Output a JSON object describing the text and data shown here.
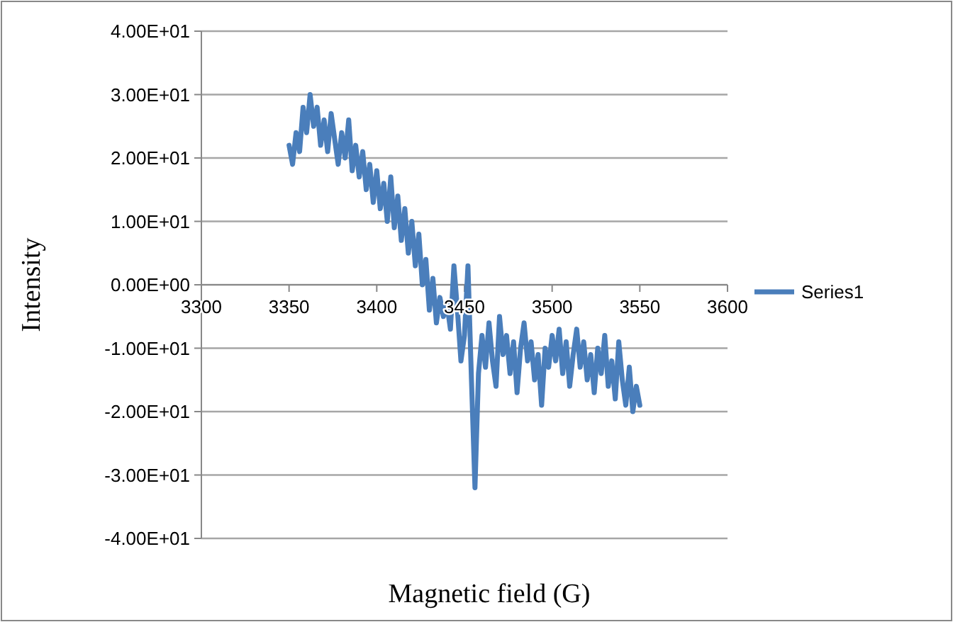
{
  "chart_data": {
    "type": "line",
    "xlabel": "Magnetic field (G)",
    "ylabel": "Intensity",
    "x": [
      3350,
      3352,
      3354,
      3356,
      3358,
      3360,
      3362,
      3364,
      3366,
      3368,
      3370,
      3372,
      3374,
      3376,
      3378,
      3380,
      3382,
      3384,
      3386,
      3388,
      3390,
      3392,
      3394,
      3396,
      3398,
      3400,
      3402,
      3404,
      3406,
      3408,
      3410,
      3412,
      3414,
      3416,
      3418,
      3420,
      3422,
      3424,
      3426,
      3428,
      3430,
      3432,
      3434,
      3436,
      3438,
      3440,
      3442,
      3444,
      3446,
      3448,
      3450,
      3452,
      3454,
      3456,
      3458,
      3460,
      3462,
      3464,
      3466,
      3468,
      3470,
      3472,
      3474,
      3476,
      3478,
      3480,
      3482,
      3484,
      3486,
      3488,
      3490,
      3492,
      3494,
      3496,
      3498,
      3500,
      3502,
      3504,
      3506,
      3508,
      3510,
      3512,
      3514,
      3516,
      3518,
      3520,
      3522,
      3524,
      3526,
      3528,
      3530,
      3532,
      3534,
      3536,
      3538,
      3540,
      3542,
      3544,
      3546,
      3548,
      3550
    ],
    "series": [
      {
        "name": "Series1",
        "color": "#4a7ebb",
        "values": [
          22,
          19,
          24,
          21,
          28,
          24,
          30,
          25,
          28,
          22,
          26,
          21,
          27,
          23,
          19,
          24,
          20,
          26,
          18,
          22,
          17,
          21,
          15,
          19,
          13,
          18,
          12,
          16,
          10,
          17,
          9,
          14,
          7,
          12,
          5,
          10,
          3,
          8,
          0,
          4,
          -4,
          1,
          -6,
          -2,
          -5,
          -3,
          -7,
          3,
          -4,
          -12,
          -8,
          3,
          -15,
          -32,
          -14,
          -8,
          -13,
          -6,
          -12,
          -16,
          -5,
          -11,
          -8,
          -14,
          -9,
          -17,
          -10,
          -6,
          -12,
          -9,
          -15,
          -11,
          -19,
          -10,
          -13,
          -8,
          -12,
          -7,
          -14,
          -9,
          -16,
          -11,
          -7,
          -13,
          -9,
          -15,
          -11,
          -17,
          -10,
          -14,
          -8,
          -16,
          -12,
          -18,
          -9,
          -15,
          -19,
          -13,
          -20,
          -16,
          -19
        ]
      }
    ],
    "xlim": [
      3300,
      3600
    ],
    "xticks": [
      3300,
      3350,
      3400,
      3450,
      3500,
      3550,
      3600
    ],
    "ylim": [
      -40,
      40
    ],
    "yticks": [
      {
        "value": -40,
        "label": "-4.00E+01"
      },
      {
        "value": -30,
        "label": "-3.00E+01"
      },
      {
        "value": -20,
        "label": "-2.00E+01"
      },
      {
        "value": -10,
        "label": "-1.00E+01"
      },
      {
        "value": 0,
        "label": "0.00E+00"
      },
      {
        "value": 10,
        "label": "1.00E+01"
      },
      {
        "value": 20,
        "label": "2.00E+01"
      },
      {
        "value": 30,
        "label": "3.00E+01"
      },
      {
        "value": 40,
        "label": "4.00E+01"
      }
    ],
    "grid": "y",
    "legend": "right",
    "line_style": "solid"
  }
}
